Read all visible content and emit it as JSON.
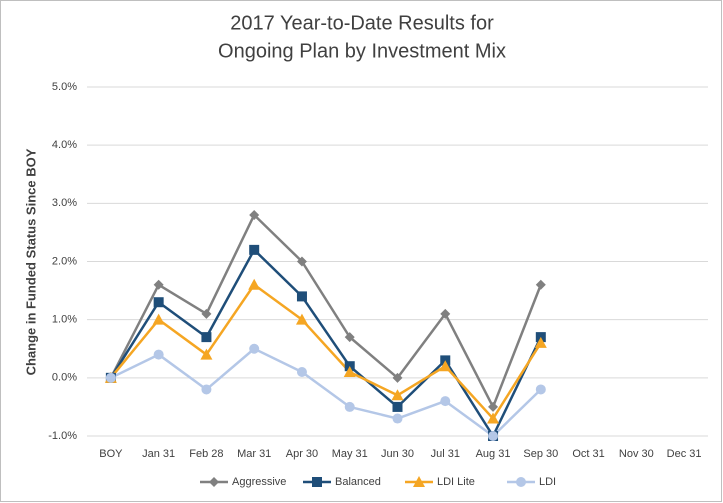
{
  "chart_data": {
    "type": "line",
    "title": [
      "2017 Year-to-Date Results for",
      "Ongoing Plan by Investment Mix"
    ],
    "y_label": "Change in Funded Status Since BOY",
    "categories": [
      "BOY",
      "Jan 31",
      "Feb 28",
      "Mar 31",
      "Apr 30",
      "May 31",
      "Jun 30",
      "Jul 31",
      "Aug 31",
      "Sep 30",
      "Oct 31",
      "Nov 30",
      "Dec 31"
    ],
    "series": [
      {
        "name": "Aggressive",
        "color": "#808080",
        "marker": "diamond",
        "values": [
          0,
          1.6,
          1.1,
          2.8,
          2.0,
          0.7,
          0,
          1.1,
          -0.5,
          1.6,
          null,
          null,
          null
        ]
      },
      {
        "name": "Balanced",
        "color": "#1f4e79",
        "marker": "square",
        "values": [
          0,
          1.3,
          0.7,
          2.2,
          1.4,
          0.2,
          -0.5,
          0.3,
          -1.0,
          0.7,
          null,
          null,
          null
        ]
      },
      {
        "name": "LDI Lite",
        "color": "#f5a623",
        "marker": "triangle",
        "values": [
          0,
          1.0,
          0.4,
          1.6,
          1.0,
          0.1,
          -0.3,
          0.2,
          -0.7,
          0.6,
          null,
          null,
          null
        ]
      },
      {
        "name": "LDI",
        "color": "#b4c7e7",
        "marker": "circle",
        "values": [
          0,
          0.4,
          -0.2,
          0.5,
          0.1,
          -0.5,
          -0.7,
          -0.4,
          -1.0,
          -0.2,
          null,
          null,
          null
        ]
      }
    ],
    "ylim": [
      -1,
      5
    ],
    "yticks": [
      {
        "value": -1,
        "label": "-1.0%"
      },
      {
        "value": 0,
        "label": "0.0%"
      },
      {
        "value": 1,
        "label": "1.0%"
      },
      {
        "value": 2,
        "label": "2.0%"
      },
      {
        "value": 3,
        "label": "3.0%"
      },
      {
        "value": 4,
        "label": "4.0%"
      },
      {
        "value": 5,
        "label": "5.0%"
      }
    ],
    "grid": true,
    "legend": "bottom"
  }
}
